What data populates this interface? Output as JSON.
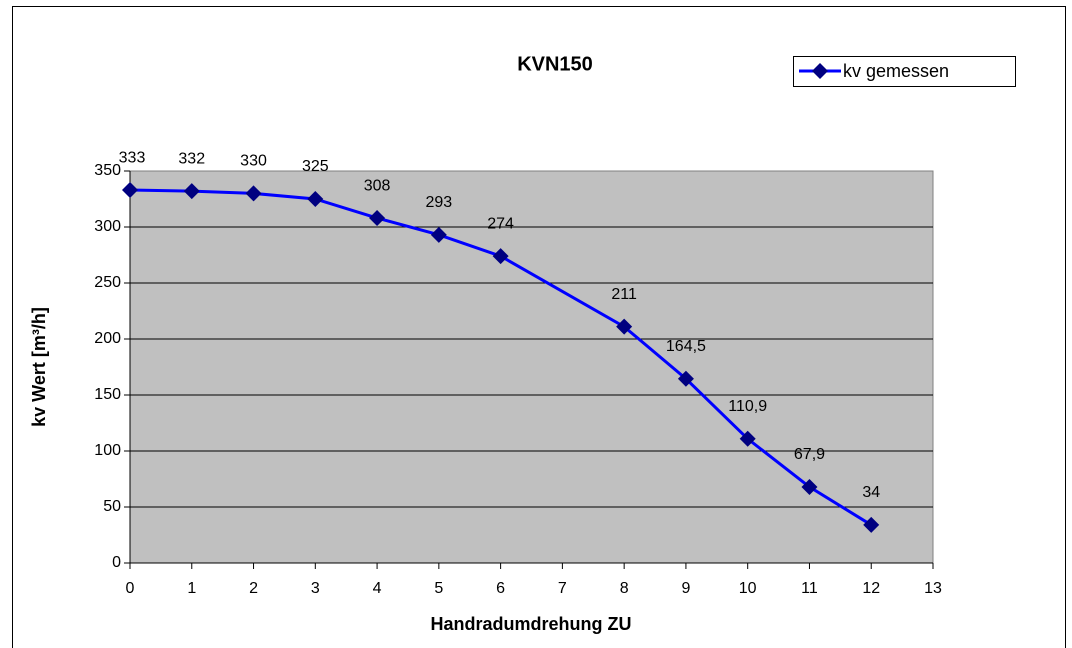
{
  "chart_data": {
    "type": "line",
    "title": "KVN150",
    "x_label": "Handradumdrehung ZU",
    "y_label": "kv Wert [m³/h]",
    "x": [
      0,
      1,
      2,
      3,
      4,
      5,
      6,
      8,
      9,
      10,
      11,
      12
    ],
    "series": [
      {
        "name": "kv gemessen",
        "color": "#0000ff",
        "marker_color": "#000080",
        "values": [
          333,
          332,
          330,
          325,
          308,
          293,
          274,
          211,
          164.5,
          110.9,
          67.9,
          34
        ],
        "value_labels": [
          "333",
          "332",
          "330",
          "325",
          "308",
          "293",
          "274",
          "211",
          "164,5",
          "110,9",
          "67,9",
          "34"
        ]
      }
    ],
    "xlim": [
      0,
      13
    ],
    "xticks": [
      0,
      1,
      2,
      3,
      4,
      5,
      6,
      7,
      8,
      9,
      10,
      11,
      12,
      13
    ],
    "ylim": [
      0,
      350
    ],
    "yticks": [
      0,
      50,
      100,
      150,
      200,
      250,
      300,
      350
    ],
    "grid": true,
    "legend": "upper right",
    "plot_background": "#c0c0c0"
  }
}
